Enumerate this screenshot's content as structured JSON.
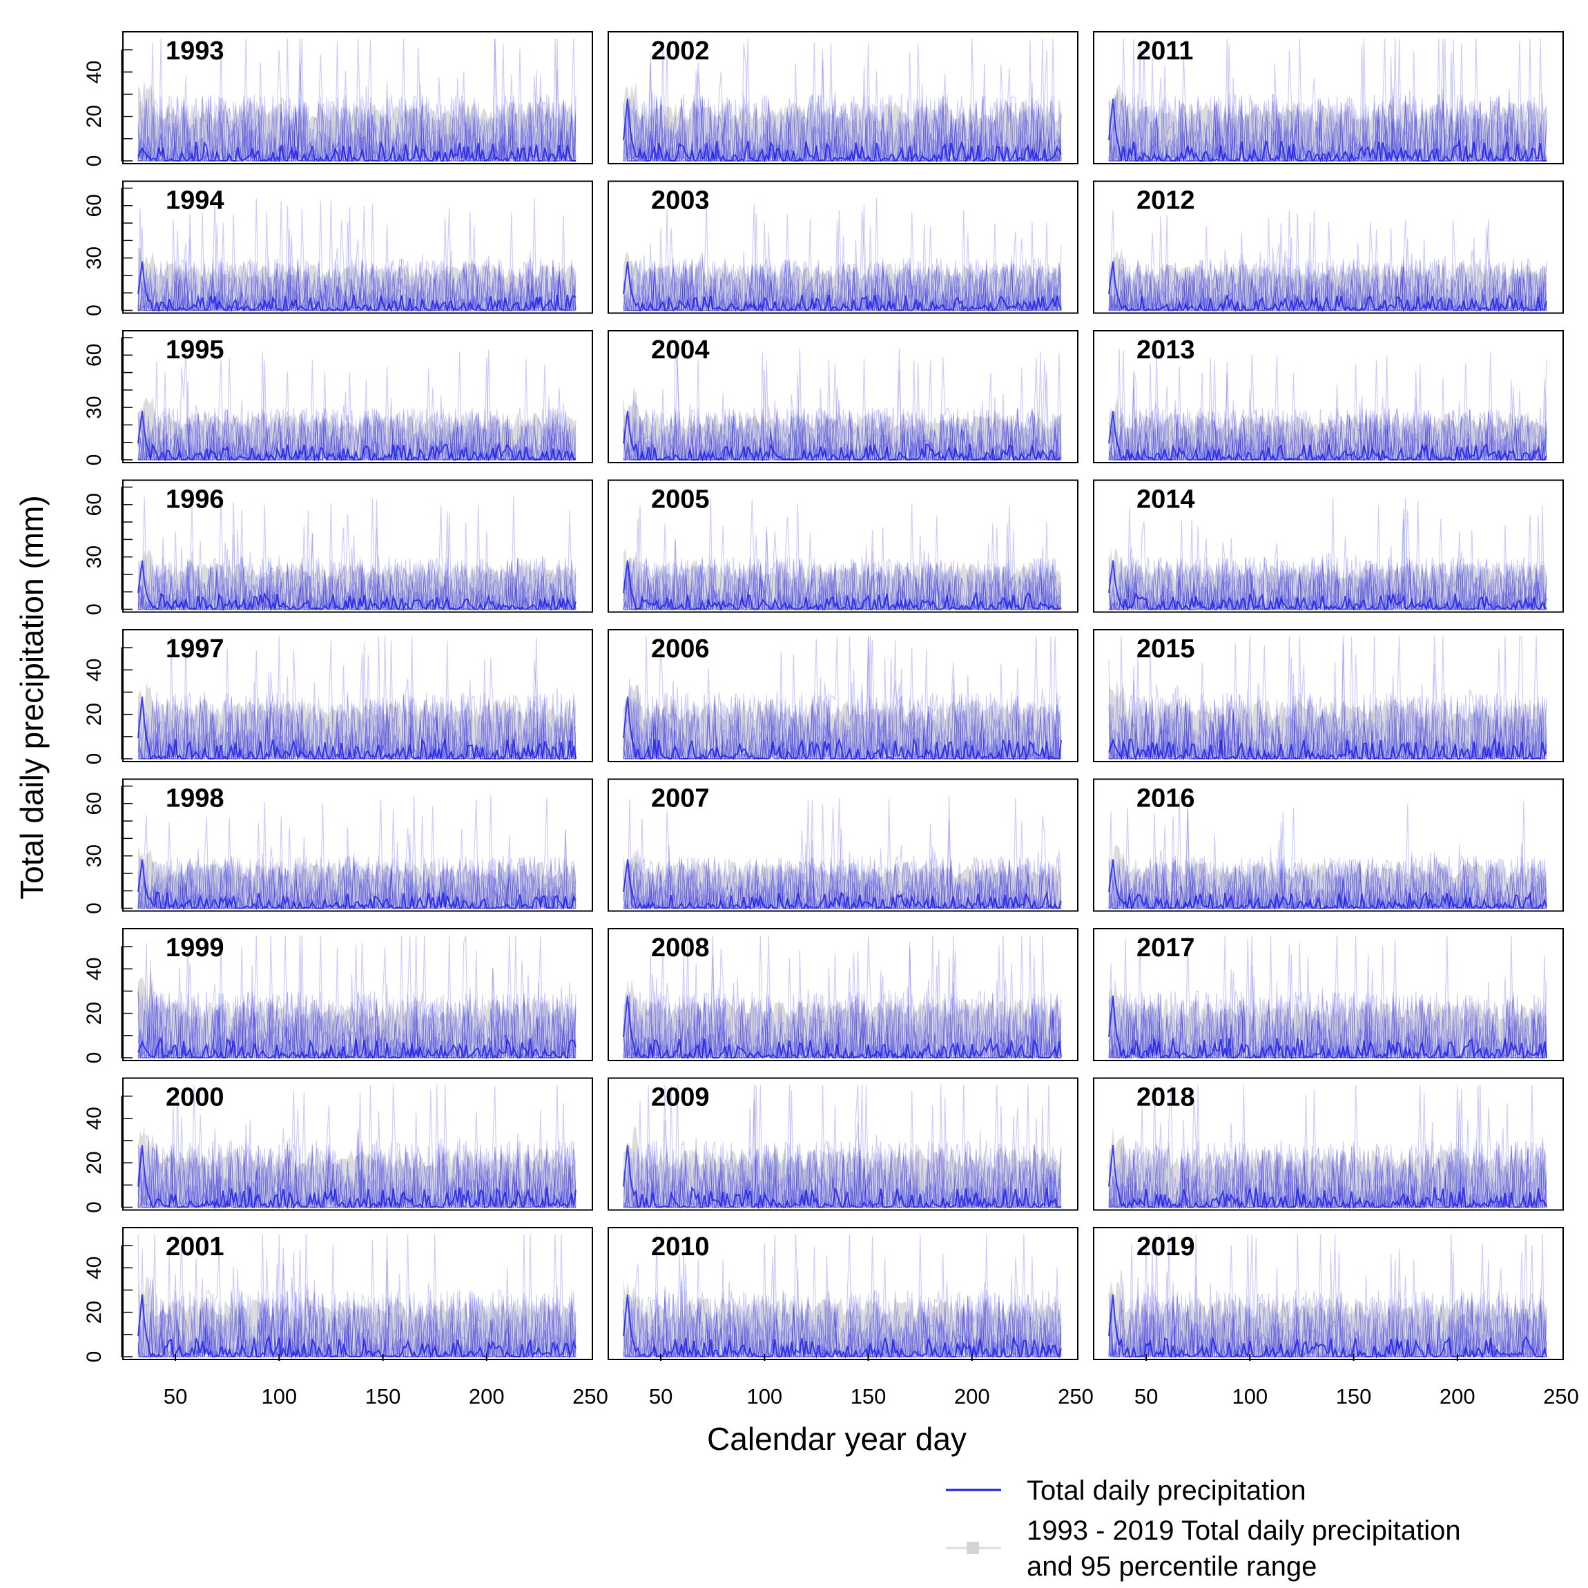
{
  "chart_data": {
    "type": "line",
    "xlabel": "Calendar year day",
    "ylabel": "Total daily precipitation (mm)",
    "xlim": [
      32,
      243
    ],
    "x_ticks": [
      50,
      100,
      150,
      200,
      250
    ],
    "grid": false,
    "legend": {
      "position": "bottom-right",
      "entries": [
        {
          "label": "Total daily precipitation",
          "symbol": "line",
          "color": "#1a1aee"
        },
        {
          "label_lines": [
            "1993 - 2019 Total daily precipitation",
            "and 95 percentile range"
          ],
          "symbol": "shaded-band",
          "color": "#dcdcdc"
        }
      ]
    },
    "colors": {
      "line": "#1a1aee",
      "band": "#dcdcdc",
      "frame": "#000000"
    },
    "y_scales": [
      {
        "ylim": [
          0,
          55
        ],
        "ticks": [
          0,
          10,
          20,
          30,
          40,
          50
        ],
        "labels": [
          "0",
          "20",
          "40"
        ]
      },
      {
        "ylim": [
          0,
          70
        ],
        "ticks": [
          0,
          10,
          20,
          30,
          40,
          50,
          60,
          70
        ],
        "labels": [
          "0",
          "30",
          "60"
        ]
      },
      {
        "ylim": [
          0,
          70
        ],
        "ticks": [
          0,
          10,
          20,
          30,
          40,
          50,
          60,
          70
        ],
        "labels": [
          "0",
          "30",
          "60"
        ]
      },
      {
        "ylim": [
          0,
          70
        ],
        "ticks": [
          0,
          10,
          20,
          30,
          40,
          50,
          60,
          70
        ],
        "labels": [
          "0",
          "30",
          "60"
        ]
      },
      {
        "ylim": [
          0,
          55
        ],
        "ticks": [
          0,
          10,
          20,
          30,
          40,
          50
        ],
        "labels": [
          "0",
          "20",
          "40"
        ]
      },
      {
        "ylim": [
          0,
          70
        ],
        "ticks": [
          0,
          10,
          20,
          30,
          40,
          50,
          60,
          70
        ],
        "labels": [
          "0",
          "30",
          "60"
        ]
      },
      {
        "ylim": [
          0,
          55
        ],
        "ticks": [
          0,
          10,
          20,
          30,
          40,
          50
        ],
        "labels": [
          "0",
          "20",
          "40"
        ]
      },
      {
        "ylim": [
          0,
          55
        ],
        "ticks": [
          0,
          10,
          20,
          30,
          40,
          50
        ],
        "labels": [
          "0",
          "20",
          "40"
        ]
      },
      {
        "ylim": [
          0,
          55
        ],
        "ticks": [
          0,
          10,
          20,
          30,
          40,
          50
        ],
        "labels": [
          "0",
          "20",
          "40"
        ]
      }
    ],
    "panels": [
      {
        "year": "1993",
        "early_peak": 0.2
      },
      {
        "year": "1994",
        "early_peak": 1.0
      },
      {
        "year": "1995",
        "early_peak": 1.0
      },
      {
        "year": "1996",
        "early_peak": 1.0
      },
      {
        "year": "1997",
        "early_peak": 1.0
      },
      {
        "year": "1998",
        "early_peak": 1.0
      },
      {
        "year": "1999",
        "early_peak": 0.25
      },
      {
        "year": "2000",
        "early_peak": 1.0
      },
      {
        "year": "2001",
        "early_peak": 1.0
      },
      {
        "year": "2002",
        "early_peak": 1.0
      },
      {
        "year": "2003",
        "early_peak": 1.0
      },
      {
        "year": "2004",
        "early_peak": 1.0
      },
      {
        "year": "2005",
        "early_peak": 1.0
      },
      {
        "year": "2006",
        "early_peak": 1.0
      },
      {
        "year": "2007",
        "early_peak": 1.0
      },
      {
        "year": "2008",
        "early_peak": 1.0
      },
      {
        "year": "2009",
        "early_peak": 1.0
      },
      {
        "year": "2010",
        "early_peak": 1.0
      },
      {
        "year": "2011",
        "early_peak": 1.0
      },
      {
        "year": "2012",
        "early_peak": 1.0
      },
      {
        "year": "2013",
        "early_peak": 1.0
      },
      {
        "year": "2014",
        "early_peak": 1.0
      },
      {
        "year": "2015",
        "early_peak": 0.3
      },
      {
        "year": "2016",
        "early_peak": 1.0
      },
      {
        "year": "2017",
        "early_peak": 1.0
      },
      {
        "year": "2018",
        "early_peak": 1.0
      },
      {
        "year": "2019",
        "early_peak": 1.0
      }
    ]
  }
}
